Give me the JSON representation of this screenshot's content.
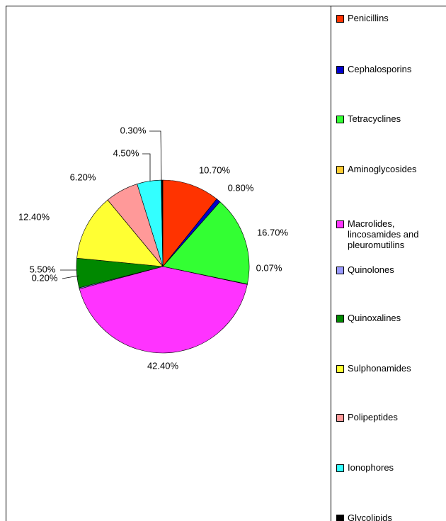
{
  "chart_data": {
    "type": "pie",
    "categories": [
      "Penicillins",
      "Cephalosporins",
      "Tetracyclines",
      "Aminoglycosides",
      "Macrolides, lincosamides and pleuromutilins",
      "Quinolones",
      "Quinoxalines",
      "Sulphonamides",
      "Polipeptides",
      "Ionophores",
      "Glycolipids"
    ],
    "values": [
      10.7,
      0.8,
      16.7,
      0.07,
      42.4,
      0.2,
      5.5,
      12.4,
      6.2,
      4.5,
      0.3
    ],
    "value_labels": [
      "10.70%",
      "0.80%",
      "16.70%",
      "0.07%",
      "42.40%",
      "0.20%",
      "5.50%",
      "12.40%",
      "6.20%",
      "4.50%",
      "0.30%"
    ],
    "colors": [
      "#ff3300",
      "#0000cc",
      "#33ff33",
      "#ffcc33",
      "#ff33ff",
      "#9999ff",
      "#008800",
      "#ffff33",
      "#ff9999",
      "#33ffff",
      "#000000"
    ],
    "legend": "right"
  }
}
